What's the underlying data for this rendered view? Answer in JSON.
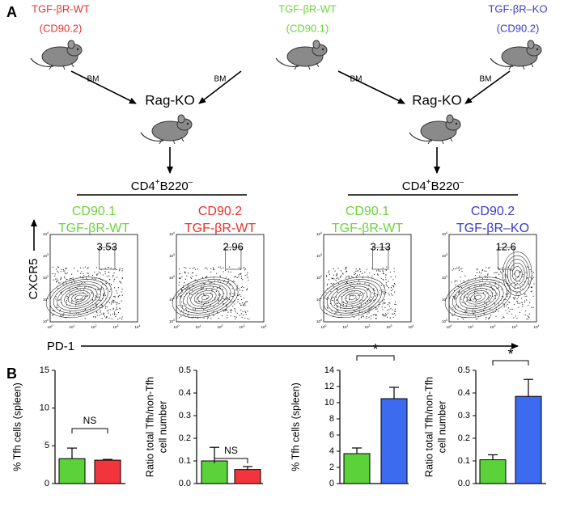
{
  "panel_a": {
    "label": "A",
    "donors": [
      {
        "name": "TGF-βR-WT",
        "marker": "(CD90.2)",
        "color": "#e8322b"
      },
      {
        "name": "TGF-βR-WT",
        "marker": "(CD90.1)",
        "color": "#6cd33c"
      },
      {
        "name": "TGF-βR–KO",
        "marker": "(CD90.2)",
        "color": "#3b3bc8"
      }
    ],
    "transfer_labels": [
      "BM",
      "BM",
      "BM",
      "BM"
    ],
    "recipients": [
      "Rag-KO",
      "Rag-KO"
    ],
    "gating": [
      [
        "CD4",
        "+",
        "B220",
        "–"
      ],
      [
        "CD4",
        "+",
        "B220",
        "–"
      ]
    ],
    "plots": [
      {
        "marker": "CD90.1",
        "genotype": "TGF-βR-WT",
        "color": "#6cd33c",
        "gate_percent": 3.53
      },
      {
        "marker": "CD90.2",
        "genotype": "TGF-βR-WT",
        "color": "#e8322b",
        "gate_percent": 2.96
      },
      {
        "marker": "CD90.1",
        "genotype": "TGF-βR-WT",
        "color": "#6cd33c",
        "gate_percent": 3.13
      },
      {
        "marker": "CD90.2",
        "genotype": "TGF-βR–KO",
        "color": "#3b3bc8",
        "gate_percent": 12.6
      }
    ],
    "y_axis_label": "CXCR5",
    "x_axis_label": "PD-1",
    "axis_tick_base": "10",
    "axis_tick_exponents": [
      0,
      1,
      2,
      3,
      4
    ]
  },
  "panel_b": {
    "label": "B"
  },
  "chart_data": [
    {
      "type": "bar",
      "y_label": [
        "% Tfh cells (spleen)"
      ],
      "categories": [
        null,
        null
      ],
      "values": [
        3.3,
        3.1
      ],
      "errors": [
        1.4,
        0.1
      ],
      "colors": [
        "#5bd23a",
        "#f2353d"
      ],
      "ylim": [
        0,
        15
      ],
      "yticks": [
        0,
        5,
        10,
        15
      ],
      "significance": "NS"
    },
    {
      "type": "bar",
      "y_label": [
        "Ratio total Tfh/non-Tfh",
        "cell number"
      ],
      "categories": [
        null,
        null
      ],
      "values": [
        0.1,
        0.062
      ],
      "errors": [
        0.06,
        0.013
      ],
      "colors": [
        "#5bd23a",
        "#f2353d"
      ],
      "ylim": [
        0,
        0.5
      ],
      "yticks": [
        {
          "value": 0,
          "label": "0.0"
        },
        0.1,
        0.2,
        0.3,
        0.4,
        0.5
      ],
      "significance": "NS"
    },
    {
      "type": "bar",
      "y_label": [
        "% Tfh cells (spleen)"
      ],
      "categories": [
        null,
        null
      ],
      "values": [
        3.7,
        10.5
      ],
      "errors": [
        0.7,
        1.4
      ],
      "colors": [
        "#5bd23a",
        "#3c6bf0"
      ],
      "ylim": [
        0,
        14
      ],
      "yticks": [
        0,
        2,
        4,
        6,
        8,
        10,
        12,
        14
      ],
      "significance": "*"
    },
    {
      "type": "bar",
      "y_label": [
        "Ratio total Tfh/non-Tfh",
        "cell number"
      ],
      "categories": [
        null,
        null
      ],
      "values": [
        0.105,
        0.385
      ],
      "errors": [
        0.022,
        0.075
      ],
      "colors": [
        "#5bd23a",
        "#3c6bf0"
      ],
      "ylim": [
        0,
        0.5
      ],
      "yticks": [
        {
          "value": 0,
          "label": "0.0"
        },
        0.1,
        0.2,
        0.3,
        0.4,
        0.5
      ],
      "significance": "*"
    }
  ]
}
